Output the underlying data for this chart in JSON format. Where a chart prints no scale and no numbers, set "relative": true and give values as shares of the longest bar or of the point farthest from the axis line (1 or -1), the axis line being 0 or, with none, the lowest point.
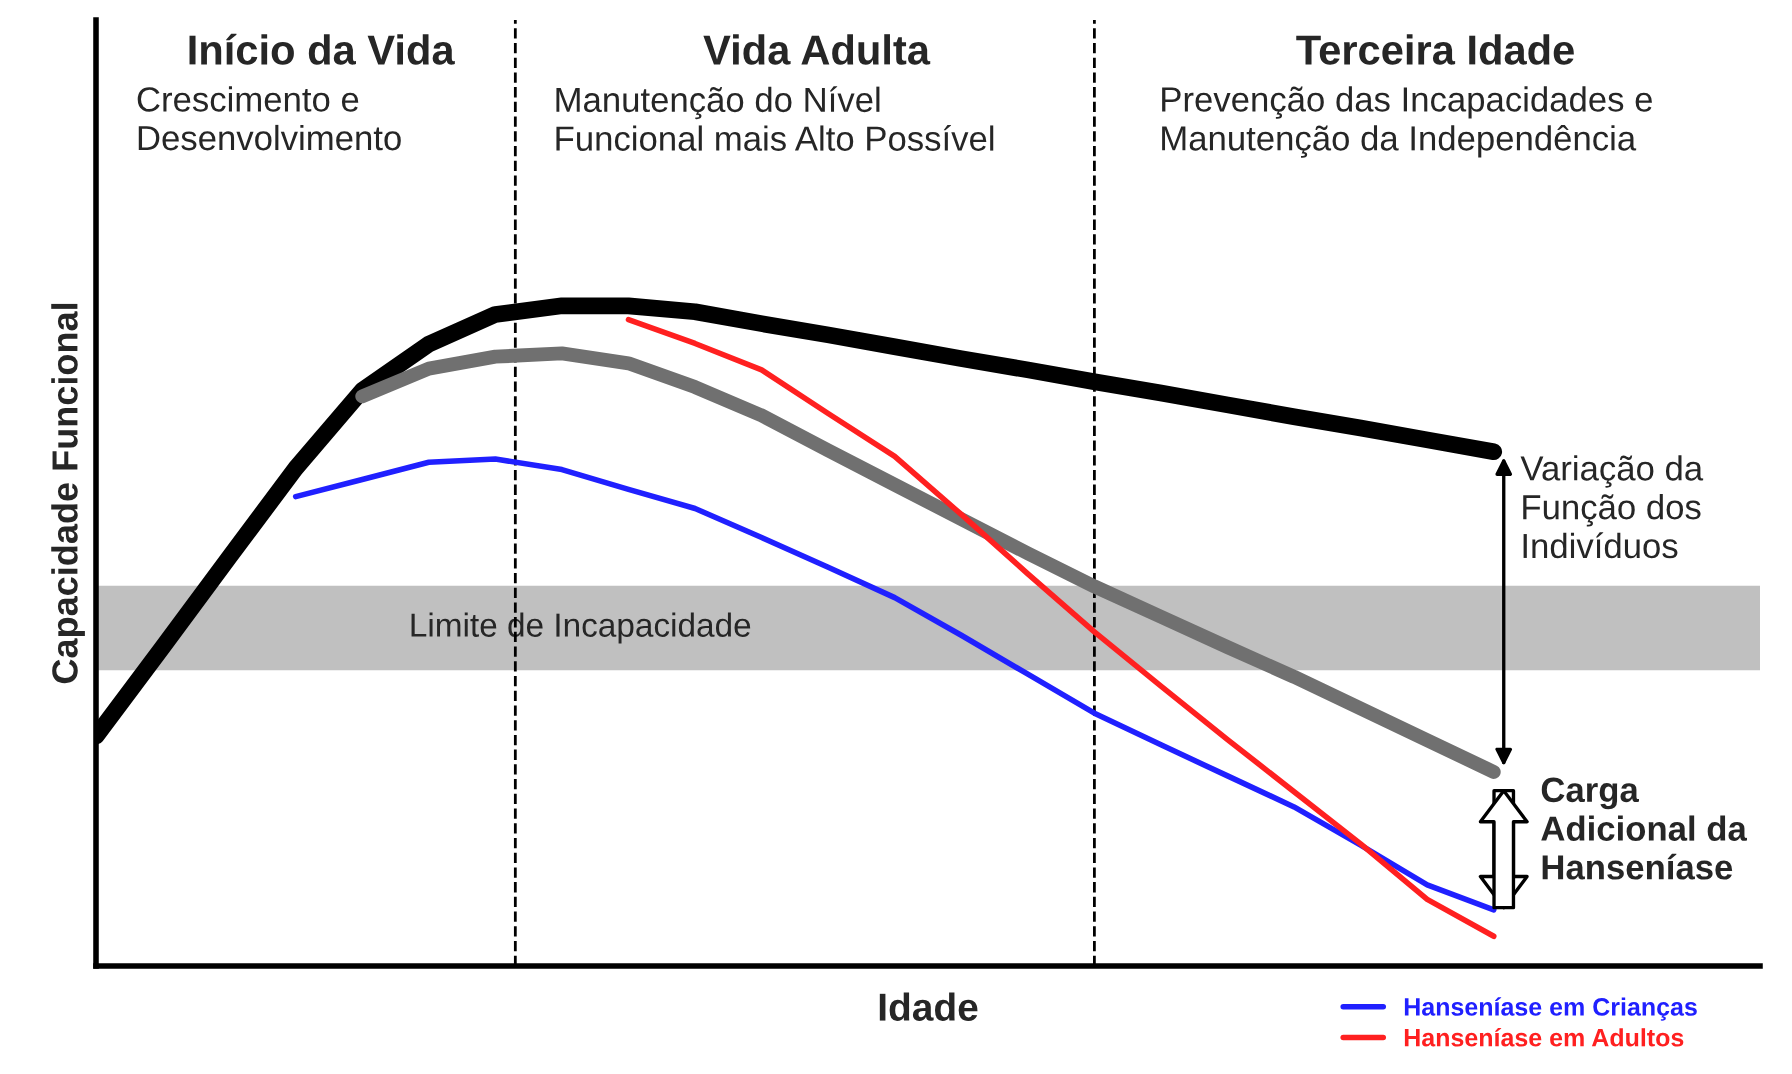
{
  "chart_data": {
    "type": "line",
    "relative": true,
    "xlabel": "Idade",
    "ylabel": "Capacidade Funcional",
    "categories": [
      null,
      null,
      null,
      null,
      null,
      null,
      null,
      null,
      null,
      null,
      null,
      null,
      null,
      null,
      null,
      null,
      null,
      null,
      null,
      null,
      null,
      null
    ],
    "series": [
      {
        "color": "#000000",
        "values": [
          0.348,
          0.483,
          0.619,
          0.754,
          0.872,
          0.942,
          0.987,
          1.0,
          1.0,
          0.991,
          0.973,
          0.956,
          0.938,
          0.92,
          0.903,
          0.885,
          0.868,
          0.85,
          0.832,
          0.815,
          0.797,
          0.779
        ]
      },
      {
        "color": "#707070",
        "values": [
          null,
          null,
          null,
          null,
          0.863,
          0.905,
          0.923,
          0.928,
          0.913,
          0.877,
          0.834,
          0.781,
          0.729,
          0.677,
          0.625,
          0.575,
          0.529,
          0.483,
          0.438,
          0.39,
          0.342,
          0.294
        ]
      },
      {
        "name": "Hanseníase em Crianças",
        "color": "#2020ff",
        "values": [
          null,
          null,
          null,
          0.711,
          0.737,
          0.763,
          0.768,
          0.752,
          0.722,
          0.693,
          0.649,
          0.604,
          0.558,
          0.501,
          0.442,
          0.383,
          0.335,
          0.288,
          0.241,
          0.183,
          0.123,
          0.085
        ]
      },
      {
        "name": "Hanseníase em Adultos",
        "color": "#ff2020",
        "values": [
          null,
          null,
          null,
          null,
          null,
          null,
          null,
          null,
          0.979,
          0.943,
          0.903,
          0.837,
          0.772,
          0.684,
          0.594,
          0.506,
          0.424,
          0.343,
          0.264,
          0.185,
          0.101,
          0.045
        ]
      }
    ],
    "bands": [
      {
        "axis": "y",
        "from": 0.448,
        "to": 0.576,
        "label": "Limite de Incapacidade",
        "color": "#c0c0c0"
      }
    ],
    "annotations": [
      "Início da Vida",
      "Crescimento e\nDesenvolvimento",
      "Vida Adulta",
      "Manutenção do Nível\nFuncional mais Alto Possível",
      "Terceira Idade",
      "Prevenção das Incapacidades e\nManutenção da Independência",
      "Variação da\nFunção dos\nIndivíduos",
      "Carga\nAdicional da\nHanseníase"
    ],
    "legend": "bottom right",
    "marker": "none",
    "line_style": "solid"
  }
}
